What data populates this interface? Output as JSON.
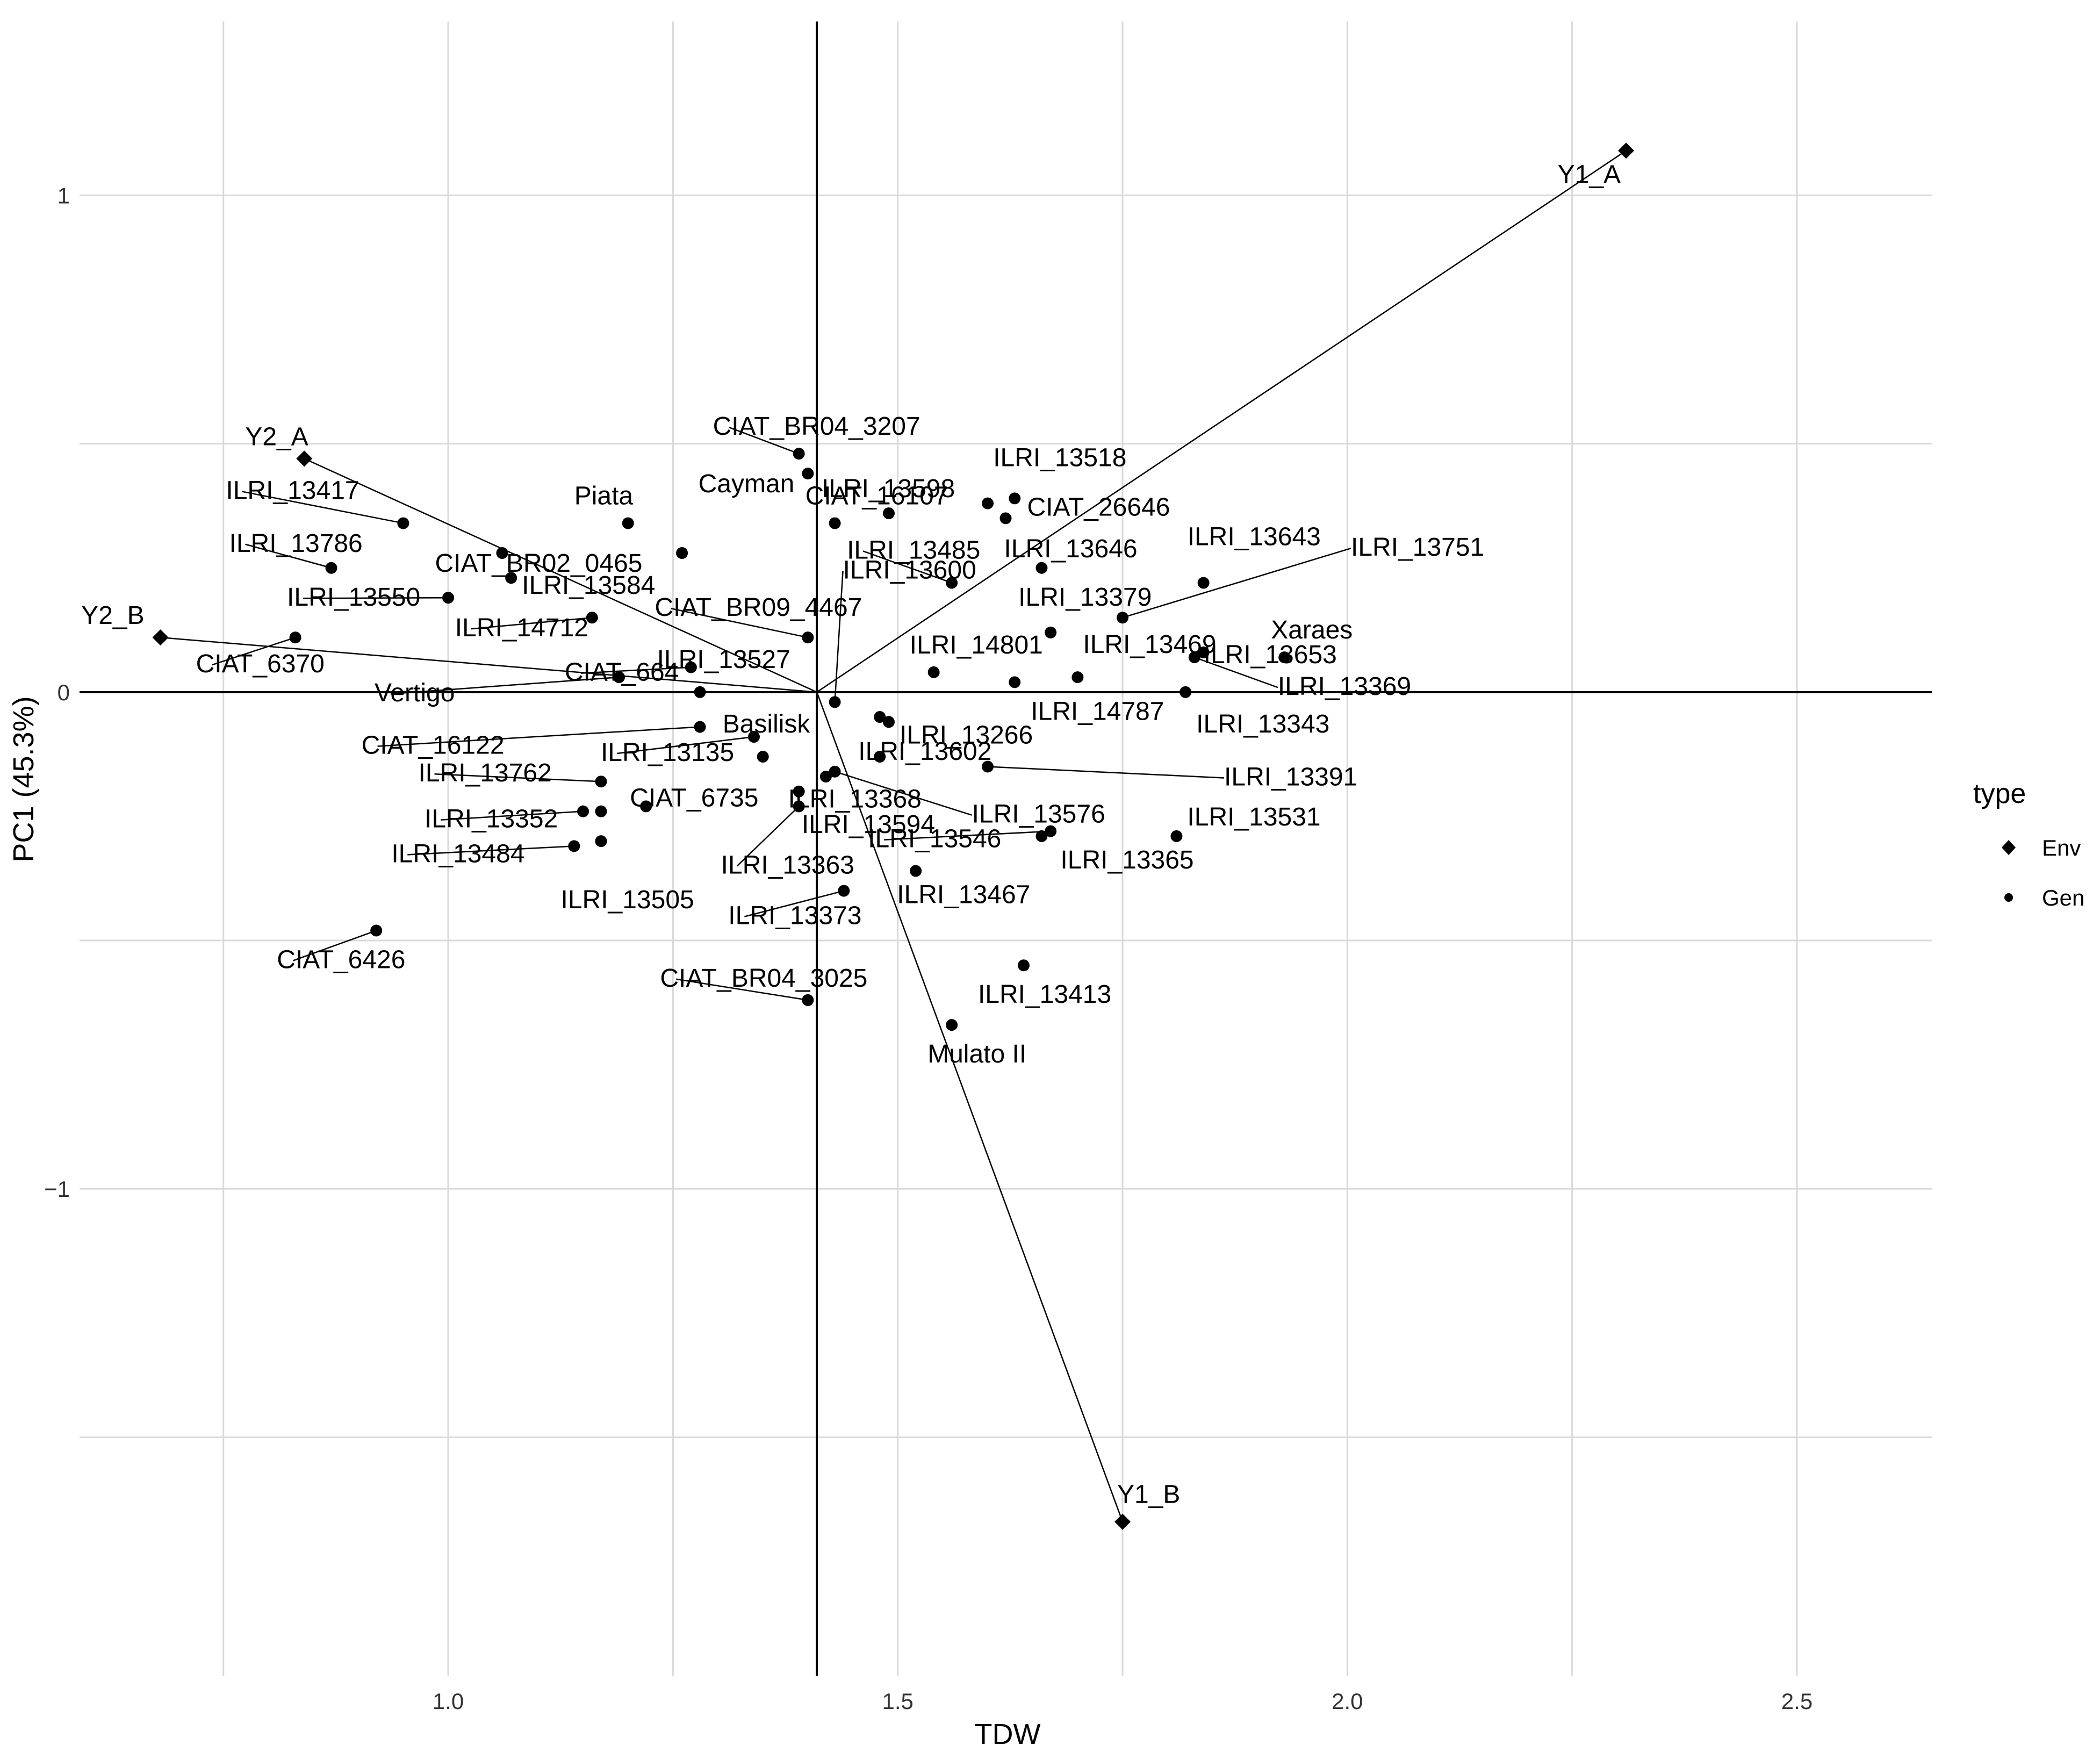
{
  "chart_data": {
    "type": "scatter",
    "title": "",
    "xlabel": "TDW",
    "ylabel": "PC1 (45.3%)",
    "xlim": [
      0.59,
      2.65
    ],
    "ylim": [
      -1.98,
      1.35
    ],
    "xticks": [
      1.0,
      1.5,
      2.0,
      2.5
    ],
    "xtick_labels": [
      "1.0",
      "1.5",
      "2.0",
      "2.5"
    ],
    "yticks": [
      -1,
      0,
      1
    ],
    "ytick_labels": [
      "−1",
      "0",
      "1"
    ],
    "origin": [
      1.41,
      0
    ],
    "grid": true,
    "legend": {
      "title": "type",
      "position": "right",
      "entries": [
        {
          "name": "Env",
          "marker": "diamond"
        },
        {
          "name": "Gen",
          "marker": "circle"
        }
      ]
    },
    "series": [
      {
        "name": "Env",
        "marker": "diamond",
        "points": [
          {
            "label": "Y1_A",
            "x": 2.31,
            "y": 1.09
          },
          {
            "label": "Y1_B",
            "x": 1.75,
            "y": -1.67
          },
          {
            "label": "Y2_A",
            "x": 0.84,
            "y": 0.47
          },
          {
            "label": "Y2_B",
            "x": 0.68,
            "y": 0.11
          }
        ]
      },
      {
        "name": "Gen",
        "marker": "circle",
        "points": [
          {
            "label": "CIAT_BR04_3207",
            "x": 1.39,
            "y": 0.48
          },
          {
            "label": "Cayman",
            "x": 1.4,
            "y": 0.44
          },
          {
            "label": "ILRI_13518",
            "x": 1.63,
            "y": 0.39
          },
          {
            "label": "CIAT_26646",
            "x": 1.62,
            "y": 0.35
          },
          {
            "label": "ILRI_13598",
            "x": 1.49,
            "y": 0.36
          },
          {
            "label": "",
            "x": 1.6,
            "y": 0.38
          },
          {
            "label": "Piata",
            "x": 1.2,
            "y": 0.34
          },
          {
            "label": "ILRI_13417",
            "x": 0.95,
            "y": 0.34
          },
          {
            "label": "CIAT_16107",
            "x": 1.43,
            "y": 0.34
          },
          {
            "label": "CIAT_BR02_0465",
            "x": 1.06,
            "y": 0.28
          },
          {
            "label": "ILRI_13786",
            "x": 0.87,
            "y": 0.25
          },
          {
            "label": "",
            "x": 1.26,
            "y": 0.28
          },
          {
            "label": "ILRI_13584",
            "x": 1.07,
            "y": 0.23
          },
          {
            "label": "ILRI_13485",
            "x": 1.56,
            "y": 0.22
          },
          {
            "label": "ILRI_13646",
            "x": 1.66,
            "y": 0.25
          },
          {
            "label": "ILRI_13643",
            "x": 1.84,
            "y": 0.22
          },
          {
            "label": "ILRI_13751",
            "x": 1.75,
            "y": 0.15
          },
          {
            "label": "ILRI_13550",
            "x": 1.0,
            "y": 0.19
          },
          {
            "label": "ILRI_14712",
            "x": 1.16,
            "y": 0.15
          },
          {
            "label": "ILRI_13379",
            "x": 1.67,
            "y": 0.12
          },
          {
            "label": "ILRI_13653",
            "x": 1.84,
            "y": 0.08
          },
          {
            "label": "CIAT_BR09_4467",
            "x": 1.4,
            "y": 0.11
          },
          {
            "label": "ILRI_13600",
            "x": 1.43,
            "y": -0.02
          },
          {
            "label": "CIAT_6370",
            "x": 0.83,
            "y": 0.11
          },
          {
            "label": "Vertigo",
            "x": 1.19,
            "y": 0.03
          },
          {
            "label": "CIAT_664",
            "x": 1.27,
            "y": 0.05
          },
          {
            "label": "ILRI_13527",
            "x": 1.28,
            "y": 0.0
          },
          {
            "label": "ILRI_13469",
            "x": 1.7,
            "y": 0.03
          },
          {
            "label": "Xaraes",
            "x": 1.93,
            "y": 0.07
          },
          {
            "label": "ILRI_13369",
            "x": 1.83,
            "y": 0.07
          },
          {
            "label": "ILRI_14801",
            "x": 1.54,
            "y": 0.04
          },
          {
            "label": "ILRI_14787",
            "x": 1.63,
            "y": 0.02
          },
          {
            "label": "ILRI_13343",
            "x": 1.82,
            "y": 0.0
          },
          {
            "label": "CIAT_16122",
            "x": 1.28,
            "y": -0.07
          },
          {
            "label": "ILRI_13135",
            "x": 1.34,
            "y": -0.09
          },
          {
            "label": "Basilisk",
            "x": 1.35,
            "y": -0.13
          },
          {
            "label": "ILRI_13602",
            "x": 1.48,
            "y": -0.05
          },
          {
            "label": "ILRI_13266",
            "x": 1.49,
            "y": -0.06
          },
          {
            "label": "",
            "x": 1.48,
            "y": -0.13
          },
          {
            "label": "ILRI_13391",
            "x": 1.6,
            "y": -0.15
          },
          {
            "label": "ILRI_13762",
            "x": 1.17,
            "y": -0.18
          },
          {
            "label": "CIAT_6735",
            "x": 1.22,
            "y": -0.23
          },
          {
            "label": "ILRI_13352",
            "x": 1.15,
            "y": -0.24
          },
          {
            "label": "ILRI_13368",
            "x": 1.39,
            "y": -0.2
          },
          {
            "label": "ILRI_13594",
            "x": 1.42,
            "y": -0.17
          },
          {
            "label": "ILRI_13576",
            "x": 1.43,
            "y": -0.16
          },
          {
            "label": "",
            "x": 1.17,
            "y": -0.24
          },
          {
            "label": "ILRI_13363",
            "x": 1.39,
            "y": -0.23
          },
          {
            "label": "ILRI_13546",
            "x": 1.67,
            "y": -0.28
          },
          {
            "label": "ILRI_13531",
            "x": 1.81,
            "y": -0.29
          },
          {
            "label": "ILRI_13365",
            "x": 1.66,
            "y": -0.29
          },
          {
            "label": "ILRI_13484",
            "x": 1.14,
            "y": -0.31
          },
          {
            "label": "ILRI_13505",
            "x": 1.17,
            "y": -0.3
          },
          {
            "label": "ILRI_13467",
            "x": 1.52,
            "y": -0.36
          },
          {
            "label": "ILRI_13373",
            "x": 1.44,
            "y": -0.4
          },
          {
            "label": "CIAT_6426",
            "x": 0.92,
            "y": -0.48
          },
          {
            "label": "ILRI_13413",
            "x": 1.64,
            "y": -0.55
          },
          {
            "label": "CIAT_BR04_3025",
            "x": 1.4,
            "y": -0.62
          },
          {
            "label": "Mulato II",
            "x": 1.56,
            "y": -0.67
          }
        ]
      }
    ]
  },
  "colors": {
    "background": "#ffffff",
    "grid": "#d9d9d9",
    "marker": "#000000",
    "text": "#000000",
    "tick_text": "#333333"
  }
}
